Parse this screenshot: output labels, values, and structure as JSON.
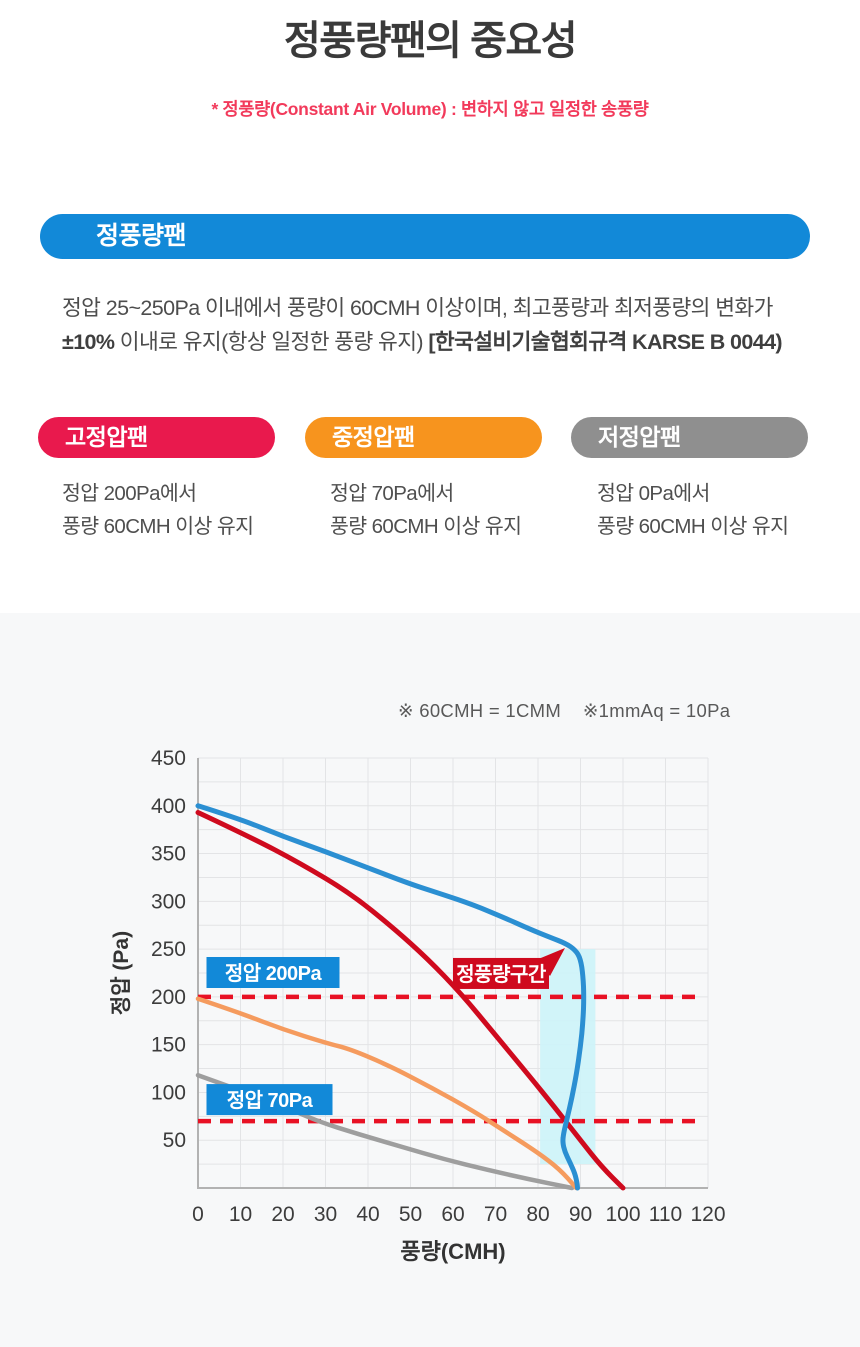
{
  "page": {
    "title": "정풍량팬의 중요성",
    "subtitle": "* 정풍량(Constant Air Volume) : 변하지 않고 일정한 송풍량"
  },
  "cav_banner": {
    "label": "정풍량팬",
    "desc_line1": "정압 25~250Pa 이내에서 풍량이 60CMH 이상이며, 최고풍량과 최저풍량의 변화가",
    "desc_line2_bold1": "±10%",
    "desc_line2_text": " 이내로 유지(항상 일정한 풍량 유지) ",
    "desc_line2_bold2": "[한국설비기술협회규격 KARSE B 0044)"
  },
  "fan_types": [
    {
      "label": "고정압팬",
      "color": "#e9194d",
      "desc_line1": "정압 200Pa에서",
      "desc_line2": "풍량 60CMH 이상 유지"
    },
    {
      "label": "중정압팬",
      "color": "#f7941e",
      "desc_line1": "정압 70Pa에서",
      "desc_line2": "풍량 60CMH 이상 유지"
    },
    {
      "label": "저정압팬",
      "color": "#8f8f8f",
      "desc_line1": "정압 0Pa에서",
      "desc_line2": "풍량 60CMH 이상 유지"
    }
  ],
  "chart_note": "※ 60CMH = 1CMM    ※1mmAq = 10Pa",
  "chart_data": {
    "type": "line",
    "title": "",
    "xlabel": "풍량(CMH)",
    "ylabel": "정압 (Pa)",
    "xlim": [
      0,
      120
    ],
    "ylim": [
      0,
      450
    ],
    "x_ticks": [
      0,
      10,
      20,
      30,
      40,
      50,
      60,
      70,
      80,
      90,
      100,
      110,
      120
    ],
    "y_ticks": [
      50,
      100,
      150,
      200,
      250,
      300,
      350,
      400,
      450
    ],
    "grid": true,
    "minor_grid_step_y": 25,
    "legend": "none",
    "series": [
      {
        "name": "저정압팬",
        "color": "#9e9e9e",
        "stroke_width": 4.5,
        "points": [
          [
            0,
            118
          ],
          [
            10,
            102
          ],
          [
            20,
            86
          ],
          [
            28,
            70
          ],
          [
            38,
            56
          ],
          [
            48,
            43
          ],
          [
            58,
            30
          ],
          [
            68,
            19
          ],
          [
            78,
            9
          ],
          [
            88,
            0
          ]
        ]
      },
      {
        "name": "중정압팬",
        "color": "#f59b5e",
        "stroke_width": 4.5,
        "points": [
          [
            0,
            198
          ],
          [
            10,
            183
          ],
          [
            20,
            166
          ],
          [
            30,
            152
          ],
          [
            36,
            145
          ],
          [
            45,
            128
          ],
          [
            55,
            105
          ],
          [
            65,
            80
          ],
          [
            72,
            60
          ],
          [
            80,
            37
          ],
          [
            85,
            20
          ],
          [
            89,
            0
          ]
        ]
      },
      {
        "name": "고정압팬",
        "color": "#cf0a1e",
        "stroke_width": 5,
        "points": [
          [
            0,
            393
          ],
          [
            12,
            368
          ],
          [
            24,
            340
          ],
          [
            36,
            308
          ],
          [
            46,
            272
          ],
          [
            54,
            240
          ],
          [
            62,
            203
          ],
          [
            70,
            160
          ],
          [
            78,
            117
          ],
          [
            84,
            84
          ],
          [
            90,
            50
          ],
          [
            95,
            22
          ],
          [
            100,
            0
          ]
        ]
      },
      {
        "name": "정풍량팬",
        "color": "#2b8fd2",
        "stroke_width": 5,
        "points": [
          [
            0,
            400
          ],
          [
            10,
            386
          ],
          [
            20,
            368
          ],
          [
            30,
            352
          ],
          [
            40,
            335
          ],
          [
            50,
            318
          ],
          [
            57,
            308
          ],
          [
            65,
            296
          ],
          [
            72,
            283
          ],
          [
            78,
            271
          ],
          [
            83,
            262
          ],
          [
            86.5,
            256
          ],
          [
            88.8,
            249
          ],
          [
            90,
            240
          ],
          [
            90.6,
            222
          ],
          [
            90.8,
            200
          ],
          [
            90.6,
            175
          ],
          [
            90,
            148
          ],
          [
            89,
            118
          ],
          [
            88,
            95
          ],
          [
            86.8,
            72
          ],
          [
            86,
            57
          ],
          [
            85.8,
            48
          ],
          [
            86.3,
            38
          ],
          [
            87.5,
            27
          ],
          [
            88.7,
            15
          ],
          [
            89.2,
            5
          ],
          [
            89.3,
            0
          ]
        ]
      }
    ],
    "cav_band": {
      "x": [
        80.5,
        93.5
      ],
      "y": [
        25,
        250
      ],
      "color": "#cdf3f9"
    },
    "reference_lines": [
      {
        "value": 200,
        "color": "#e81124",
        "style": "dashed"
      },
      {
        "value": 70,
        "color": "#e81124",
        "style": "dashed"
      }
    ],
    "annotations": [
      {
        "text": "정압 200Pa",
        "type": "blue-box",
        "x": 2,
        "y": 225,
        "bg": "#1289d8",
        "text_color": "#ffffff"
      },
      {
        "text": "정압 70Pa",
        "type": "blue-box",
        "x": 2,
        "y": 92,
        "bg": "#1289d8",
        "text_color": "#ffffff"
      },
      {
        "text": "정풍량구간",
        "type": "red-flag",
        "x": 60,
        "y": 224,
        "bg": "#cf0a1e",
        "text_color": "#ffffff"
      }
    ]
  }
}
